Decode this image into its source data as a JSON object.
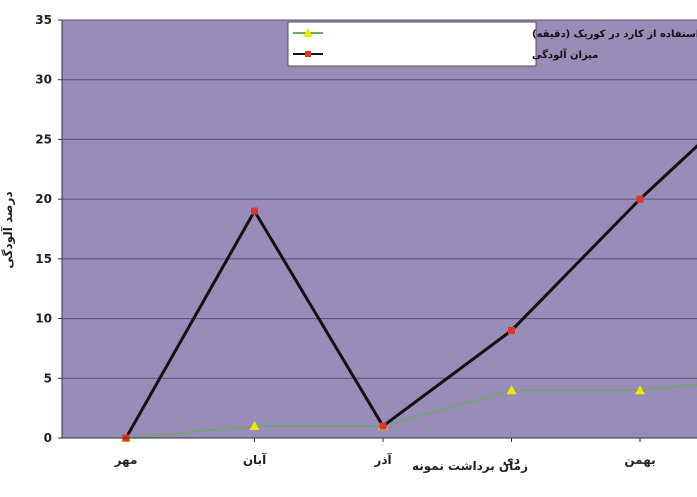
{
  "chart_data": {
    "type": "line",
    "categories": [
      "مهر",
      "آبان",
      "آذر",
      "دی",
      "بهمن"
    ],
    "xlabel": "زمان برداشت نمونه",
    "ylabel": "درصد آلودگی",
    "ylim": [
      0,
      35
    ],
    "yticks": [
      0,
      5,
      10,
      15,
      20,
      25,
      30,
      35
    ],
    "grid": true,
    "legend_position": "top-center",
    "plot_background": "#9a8cb8",
    "series": [
      {
        "name": "زمان استفاده از کارد در کوریک (دقیقه)",
        "x": [
          0,
          1,
          2,
          3,
          4,
          4.45
        ],
        "values": [
          0,
          1,
          1,
          4,
          4,
          4.5
        ],
        "color": "#6fa86a",
        "marker": "triangle",
        "marker_color": "#f2e600"
      },
      {
        "name": "میزان آلودگی",
        "x": [
          0,
          1,
          2,
          3,
          4,
          4.45
        ],
        "values": [
          0,
          19,
          1,
          9,
          20,
          24.5
        ],
        "color": "#111111",
        "marker": "square",
        "marker_color": "#e0342a"
      }
    ]
  }
}
